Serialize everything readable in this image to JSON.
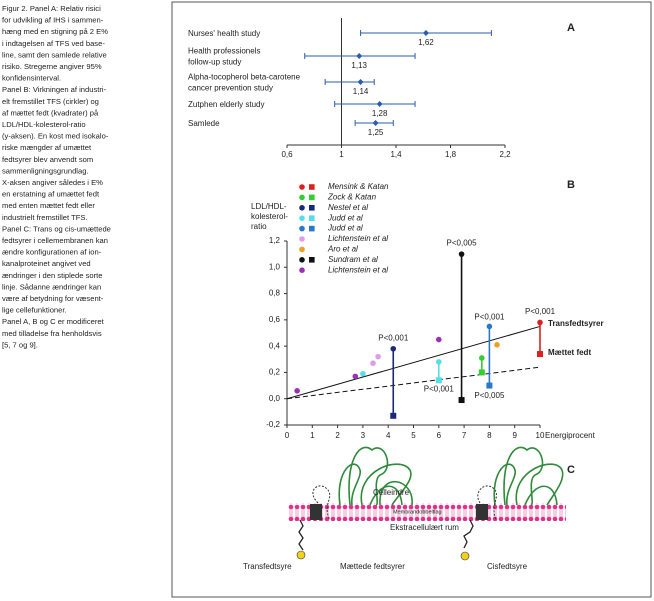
{
  "caption": [
    "Figur 2. Panel A: Relativ risici",
    "for udvikling af IHS i sammen-",
    "hæng med en stigning på 2 E%",
    "i indtagelsen af TFS ved base-",
    "line, samt den samlede relative",
    "risiko. Stregerne angiver 95%",
    "konfidensinterval.",
    "Panel B: Virkningen af industri-",
    "elt fremstillet TFS (cirkler) og",
    "af mættet fedt (kvadrater) på",
    "LDL/HDL-kolesterol-ratio",
    "(y-aksen). En kost med isokalo-",
    "riske mængder af umættet",
    "fedtsyrer blev anvendt som",
    "sammenligningsgrundlag.",
    "X-aksen angiver således i E%",
    "en erstatning af umættet fedt",
    "med enten mættet fedt eller",
    "industrielt fremstillet TFS.",
    "Panel C: Trans og cis-umættede",
    "fedtsyrer i cellemembranen kan",
    "ændre konfigurationen af ion-",
    "kanalproteinet angivet ved",
    "ændringer i den stiplede sorte",
    "linje. Sådanne ændringer kan",
    "være af betydning for væsent-",
    "lige cellefunktioner.",
    "Panel A, B og C er modificeret",
    "med tilladelse fra henholdsvis",
    "[5, 7 og 9]."
  ],
  "panel_a": {
    "label": "A",
    "type": "forest",
    "color": "#2a5db0",
    "xlim": [
      0.6,
      2.2
    ],
    "reference": 1,
    "xticks": [
      {
        "value": 0.6,
        "label": "0,6"
      },
      1,
      {
        "value": 1.4,
        "label": "1,4"
      },
      {
        "value": 1.8,
        "label": "1,8"
      },
      {
        "value": 2.2,
        "label": "2,2"
      }
    ],
    "studies": [
      {
        "name": [
          "Nurses' health study"
        ],
        "value": 1.62,
        "value_label": "1,62",
        "low": 1.14,
        "high": 2.1
      },
      {
        "name": [
          "Health professionels",
          "follow-up study"
        ],
        "value": 1.13,
        "value_label": "1,13",
        "low": 0.73,
        "high": 1.54
      },
      {
        "name": [
          "Alpha-tocopherol beta-carotene",
          "cancer prevention study"
        ],
        "value": 1.14,
        "value_label": "1,14",
        "low": 0.88,
        "high": 1.24
      },
      {
        "name": [
          "Zutphen elderly study"
        ],
        "value": 1.28,
        "value_label": "1,28",
        "low": 0.95,
        "high": 1.54
      },
      {
        "name": [
          "Samlede"
        ],
        "value": 1.25,
        "value_label": "1,25",
        "low": 1.1,
        "high": 1.38
      }
    ]
  },
  "panel_b": {
    "label": "B",
    "type": "scatter",
    "y_label": [
      "LDL/HDL-",
      "kolesterol-",
      "ratio"
    ],
    "x_label": "Energiprocent",
    "xlim": [
      0,
      10
    ],
    "ylim": [
      -0.2,
      1.2
    ],
    "xticks": [
      0,
      1,
      2,
      3,
      4,
      5,
      6,
      7,
      8,
      9,
      10
    ],
    "yticks": [
      {
        "value": -0.2,
        "label": "-0,2"
      },
      {
        "value": 0,
        "label": "0,0"
      },
      {
        "value": 0.2,
        "label": "0,2"
      },
      {
        "value": 0.4,
        "label": "0,4"
      },
      {
        "value": 0.6,
        "label": "0,6"
      },
      {
        "value": 0.8,
        "label": "0,8"
      },
      {
        "value": 1,
        "label": "1,0"
      },
      {
        "value": 1.2,
        "label": "1,2"
      }
    ],
    "series": [
      {
        "name": "Mensink & Katan",
        "color": "#e02020",
        "circles": [
          {
            "x": 10,
            "y": 0.58
          }
        ],
        "squares": [
          {
            "x": 10,
            "y": 0.34
          }
        ]
      },
      {
        "name": "Zock & Katan",
        "color": "#33cc33",
        "circles": [
          {
            "x": 7.7,
            "y": 0.31
          }
        ],
        "squares": [
          {
            "x": 7.7,
            "y": 0.2
          }
        ]
      },
      {
        "name": "Nestel et al",
        "color": "#1a2a7a",
        "circles": [
          {
            "x": 4.2,
            "y": 0.38
          }
        ],
        "squares": [
          {
            "x": 4.2,
            "y": -0.13
          }
        ]
      },
      {
        "name": "Judd et al",
        "color": "#55dde8",
        "circles": [
          {
            "x": 6,
            "y": 0.28
          },
          {
            "x": 3,
            "y": 0.19
          }
        ],
        "squares": [
          {
            "x": 6,
            "y": 0.14
          }
        ]
      },
      {
        "name": "Judd et al",
        "color": "#2a78c8",
        "circles": [
          {
            "x": 8,
            "y": 0.55
          }
        ],
        "squares": [
          {
            "x": 8,
            "y": 0.1
          }
        ]
      },
      {
        "name": "Lichtenstein et al",
        "color": "#d9a0e8",
        "circles": [
          {
            "x": 3.4,
            "y": 0.27
          },
          {
            "x": 3.6,
            "y": 0.32
          }
        ],
        "squares": []
      },
      {
        "name": "Aro et al",
        "color": "#f0a020",
        "circles": [
          {
            "x": 8.3,
            "y": 0.41
          }
        ],
        "squares": []
      },
      {
        "name": "Sundram et al",
        "color": "#111111",
        "circles": [
          {
            "x": 6.9,
            "y": 1.1
          }
        ],
        "squares": [
          {
            "x": 6.9,
            "y": -0.01
          }
        ]
      },
      {
        "name": "Lichtenstein et al",
        "color": "#9a30b8",
        "circles": [
          {
            "x": 0.4,
            "y": 0.06
          },
          {
            "x": 2.7,
            "y": 0.17
          },
          {
            "x": 6,
            "y": 0.45
          }
        ],
        "squares": []
      }
    ],
    "annotations": [
      {
        "text": "P<0,001",
        "x": 4.2,
        "y": 0.46
      },
      {
        "text": "P<0,001",
        "x": 6,
        "y": 0.07
      },
      {
        "text": "P<0,005",
        "x": 6.9,
        "y": 1.18
      },
      {
        "text": "P<0,001",
        "x": 8,
        "y": 0.62
      },
      {
        "text": "P<0,005",
        "x": 8,
        "y": 0.02
      },
      {
        "text": "P<0,001",
        "x": 10,
        "y": 0.66
      }
    ],
    "trend_lines": [
      {
        "name": "Transfedtsyrer",
        "from": [
          0,
          0
        ],
        "to": [
          10,
          0.55
        ],
        "dashed": false,
        "label_y": 0.57
      },
      {
        "name": "Mættet fedt",
        "from": [
          0,
          0
        ],
        "to": [
          10,
          0.24
        ],
        "dashed": true,
        "label_y": 0.35
      }
    ]
  },
  "panel_c": {
    "label": "C",
    "texts": {
      "inside": "Celleindre",
      "membrane": "Membrandobbeltlag",
      "outside": "Ekstracellulært rum",
      "trans": "Transfedtsyre",
      "saturated": "Mættede fedtsyrer",
      "cis": "Cisfedtsyre"
    }
  }
}
